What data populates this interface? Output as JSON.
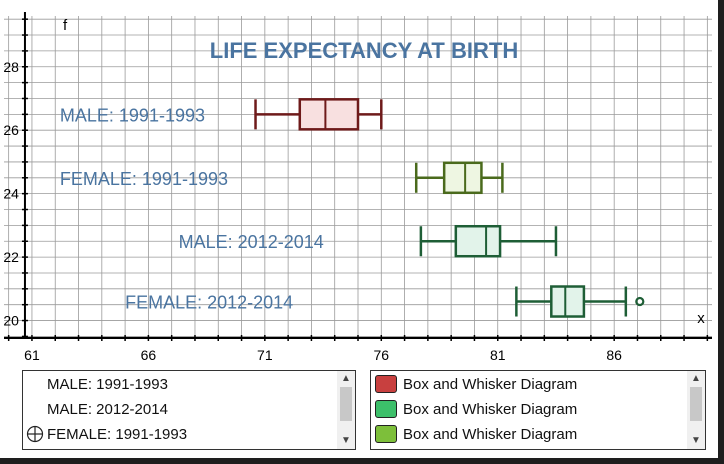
{
  "chart_data": {
    "type": "boxplot",
    "title": "LIFE EXPECTANCY AT BIRTH",
    "xlabel": "x",
    "ylabel": "f",
    "xlim": [
      59.8,
      90.2
    ],
    "ylim": [
      19.45,
      29.6
    ],
    "x_ticks": [
      61,
      66,
      71,
      76,
      81,
      86
    ],
    "y_ticks": [
      20,
      22,
      24,
      26,
      28
    ],
    "grid": true,
    "series": [
      {
        "name": "MALE: 1991-1993",
        "y": 26.5,
        "min": 70.6,
        "q1": 72.5,
        "median": 73.6,
        "q3": 75.0,
        "max": 76.0,
        "outliers": [],
        "stroke": "#6e1a1a",
        "fill": "#f8e0e0",
        "label_x": 62.2
      },
      {
        "name": "FEMALE: 1991-1993",
        "y": 24.5,
        "min": 77.5,
        "q1": 78.7,
        "median": 79.6,
        "q3": 80.3,
        "max": 81.2,
        "outliers": [],
        "stroke": "#4a6a1c",
        "fill": "#eef6e2",
        "label_x": 62.2
      },
      {
        "name": "MALE: 2012-2014",
        "y": 22.5,
        "min": 77.7,
        "q1": 79.2,
        "median": 80.5,
        "q3": 81.1,
        "max": 83.5,
        "outliers": [],
        "stroke": "#1e5e36",
        "fill": "#e2f3ea",
        "label_x": 67.3
      },
      {
        "name": "FEMALE: 2012-2014",
        "y": 20.6,
        "min": 81.8,
        "q1": 83.3,
        "median": 83.9,
        "q3": 84.7,
        "max": 86.5,
        "outliers": [
          87.1
        ],
        "stroke": "#1e5e36",
        "fill": "#e2f3ea",
        "label_x": 65.0
      }
    ]
  },
  "objects_panel": {
    "items": [
      "MALE: 1991-1993",
      "MALE: 2012-2014",
      "FEMALE: 1991-1993"
    ],
    "scroll_up_icon": "up-arrow-icon",
    "scroll_down_icon": "down-arrow-icon"
  },
  "styles_panel": {
    "items": [
      {
        "label": "Box and Whisker Diagram",
        "color": "#c8403f"
      },
      {
        "label": "Box and Whisker Diagram",
        "color": "#3cbf6a"
      },
      {
        "label": "Box and Whisker Diagram",
        "color": "#7dbf3a"
      }
    ]
  },
  "colors": {
    "title": "#4a74a0",
    "series_label": "#4a74a0",
    "grid": "#9a9a9a",
    "axis": "#000000"
  }
}
